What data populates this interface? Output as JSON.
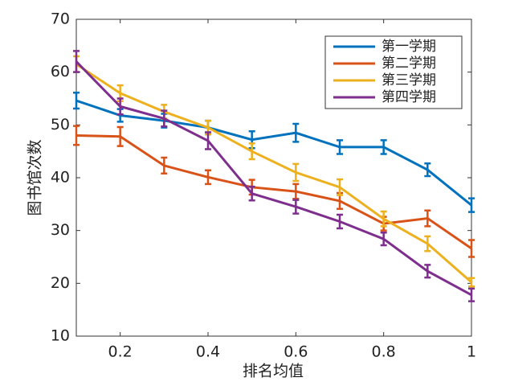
{
  "chart_data": {
    "type": "line",
    "xlabel": "排名均值",
    "ylabel": "图书馆次数",
    "x": [
      0.1,
      0.2,
      0.3,
      0.4,
      0.5,
      0.6,
      0.7,
      0.8,
      0.9,
      1
    ],
    "xlim": [
      0.1,
      1
    ],
    "xticks": [
      0.2,
      0.4,
      0.6,
      0.8,
      1
    ],
    "ylim": [
      10,
      70
    ],
    "yticks": [
      10,
      20,
      30,
      40,
      50,
      60,
      70
    ],
    "legend": "top-right",
    "grid": false,
    "series": [
      {
        "name": "第一学期",
        "color": "#0072bd",
        "values": [
          54.6,
          51.8,
          50.8,
          49.5,
          47.2,
          48.5,
          45.8,
          45.8,
          41.5,
          34.8
        ],
        "errors": [
          1.5,
          1.2,
          1.3,
          1.3,
          1.6,
          1.7,
          1.3,
          1.3,
          1.2,
          1.3
        ]
      },
      {
        "name": "第二学期",
        "color": "#d95319",
        "values": [
          48,
          47.8,
          42.3,
          40.1,
          38.2,
          37.4,
          35.6,
          31.3,
          32.3,
          26.6
        ],
        "errors": [
          1.8,
          1.8,
          1.5,
          1.3,
          1.4,
          1.4,
          1.5,
          1.3,
          1.5,
          1.6
        ]
      },
      {
        "name": "第三学期",
        "color": "#edb120",
        "values": [
          61.5,
          56,
          52.5,
          49.5,
          45,
          41,
          38.2,
          32.2,
          27.5,
          20.2
        ],
        "errors": [
          1.5,
          1.5,
          1.3,
          1.3,
          1.5,
          1.6,
          1.5,
          1.4,
          1.4,
          0.8
        ]
      },
      {
        "name": "第四学期",
        "color": "#7e2f8e",
        "values": [
          62,
          53.5,
          51.2,
          47,
          37,
          34.5,
          31.7,
          28.4,
          22.3,
          17.8
        ],
        "errors": [
          2,
          1.5,
          1.5,
          1.6,
          1.3,
          1.3,
          1.3,
          1.2,
          1.2,
          1.2
        ]
      }
    ]
  }
}
